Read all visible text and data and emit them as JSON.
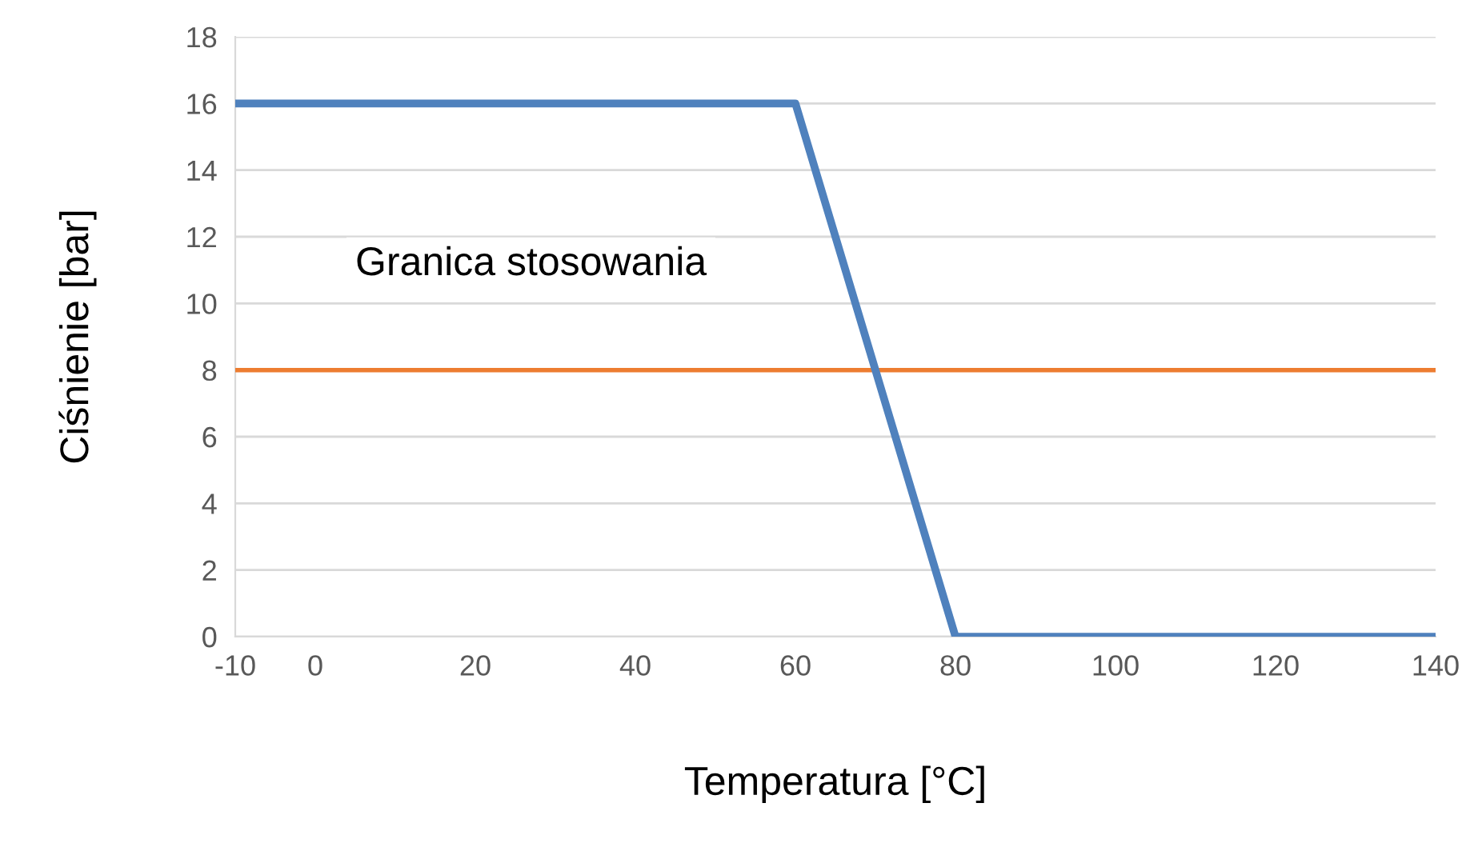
{
  "chart_data": {
    "type": "line",
    "xlabel": "Temperatura [°C]",
    "ylabel": "Ciśnienie [bar]",
    "annotations": [
      "Granica stosowania"
    ],
    "series": [
      {
        "color": "#4f81bd",
        "x": [
          -10,
          60,
          80,
          140
        ],
        "values": [
          16,
          16,
          0,
          0
        ]
      },
      {
        "color": "#ed7d31",
        "x": [
          -10,
          140
        ],
        "values": [
          8,
          8
        ]
      }
    ],
    "xlim": [
      -10,
      140
    ],
    "xticks": [
      -10,
      0,
      20,
      40,
      60,
      80,
      100,
      120,
      140
    ],
    "ylim": [
      0,
      18
    ],
    "yticks": [
      0,
      2,
      4,
      6,
      8,
      10,
      12,
      14,
      16,
      18
    ],
    "grid": "y",
    "marker": "none",
    "line_style": "solid"
  }
}
